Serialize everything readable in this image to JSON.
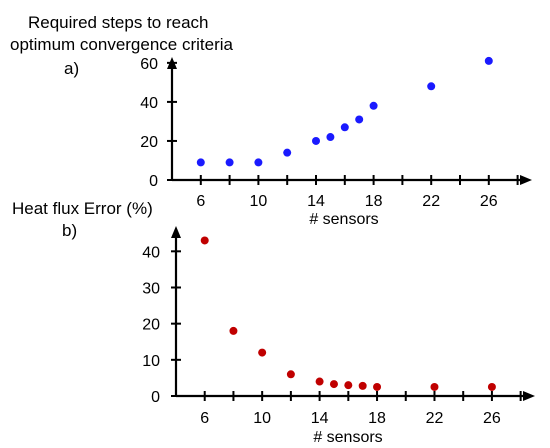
{
  "chart_data": [
    {
      "type": "scatter",
      "panel_label": "a)",
      "title_lines": [
        "Required steps to reach",
        "optimum convergence criteria"
      ],
      "xlabel": "# sensors",
      "ylabel": "",
      "xlim": [
        4,
        29
      ],
      "ylim": [
        0,
        63
      ],
      "xticks": [
        6,
        10,
        14,
        18,
        22,
        26
      ],
      "xticks_minor": [
        8,
        12,
        16,
        20,
        24,
        28
      ],
      "yticks": [
        0,
        20,
        40,
        60
      ],
      "marker_color": "#1a1aff",
      "grid": false,
      "x": [
        6,
        8,
        10,
        12,
        14,
        15,
        16,
        17,
        18,
        22,
        26
      ],
      "y": [
        9,
        9,
        9,
        14,
        20,
        22,
        27,
        31,
        38,
        48,
        61
      ]
    },
    {
      "type": "scatter",
      "panel_label": "b)",
      "title_lines": [
        "Heat flux Error (%)"
      ],
      "xlabel": "# sensors",
      "ylabel": "",
      "xlim": [
        4,
        29
      ],
      "ylim": [
        0,
        47
      ],
      "xticks": [
        6,
        10,
        14,
        18,
        22,
        26
      ],
      "xticks_minor": [
        8,
        12,
        16,
        20,
        24,
        28
      ],
      "yticks": [
        0,
        10,
        20,
        30,
        40
      ],
      "marker_color": "#c00000",
      "grid": false,
      "x": [
        6,
        8,
        10,
        12,
        14,
        15,
        16,
        17,
        18,
        22,
        26
      ],
      "y": [
        43,
        18,
        12,
        6,
        4,
        3.3,
        3,
        2.8,
        2.5,
        2.5,
        2.5
      ]
    }
  ]
}
